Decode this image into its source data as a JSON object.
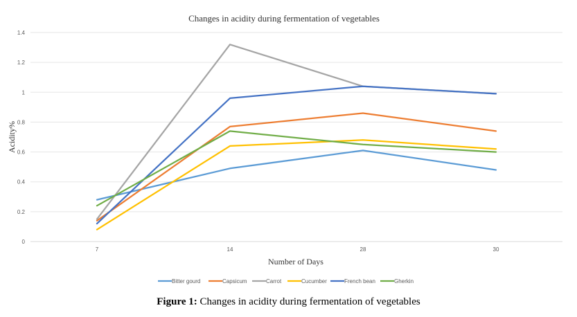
{
  "chart_data": {
    "type": "line",
    "title": "Changes in acidity during fermentation of vegetables",
    "xlabel": "Number of Days",
    "ylabel": "Acidity%",
    "categories": [
      "7",
      "14",
      "28",
      "30"
    ],
    "ylim": [
      0,
      1.4
    ],
    "yticks": [
      "0",
      "0.2",
      "0.4",
      "0.6",
      "0.8",
      "1",
      "1.2",
      "1.4"
    ],
    "grid": true,
    "legend_position": "bottom",
    "series": [
      {
        "name": "Bitter gourd",
        "color": "#5b9bd5",
        "values": [
          0.28,
          0.49,
          0.61,
          0.48
        ]
      },
      {
        "name": "Capsicum",
        "color": "#ed7d31",
        "values": [
          0.14,
          0.77,
          0.86,
          0.74
        ]
      },
      {
        "name": "Carrot",
        "color": "#a5a5a5",
        "values": [
          0.15,
          1.32,
          1.04,
          0.99
        ]
      },
      {
        "name": "Cucumber",
        "color": "#ffc000",
        "values": [
          0.08,
          0.64,
          0.68,
          0.62
        ]
      },
      {
        "name": "French bean",
        "color": "#4472c4",
        "values": [
          0.12,
          0.96,
          1.04,
          0.99
        ]
      },
      {
        "name": "Gherkin",
        "color": "#70ad47",
        "values": [
          0.24,
          0.74,
          0.65,
          0.6
        ]
      }
    ]
  },
  "caption": {
    "label": "Figure 1:",
    "text": " Changes in acidity during fermentation of vegetables"
  }
}
